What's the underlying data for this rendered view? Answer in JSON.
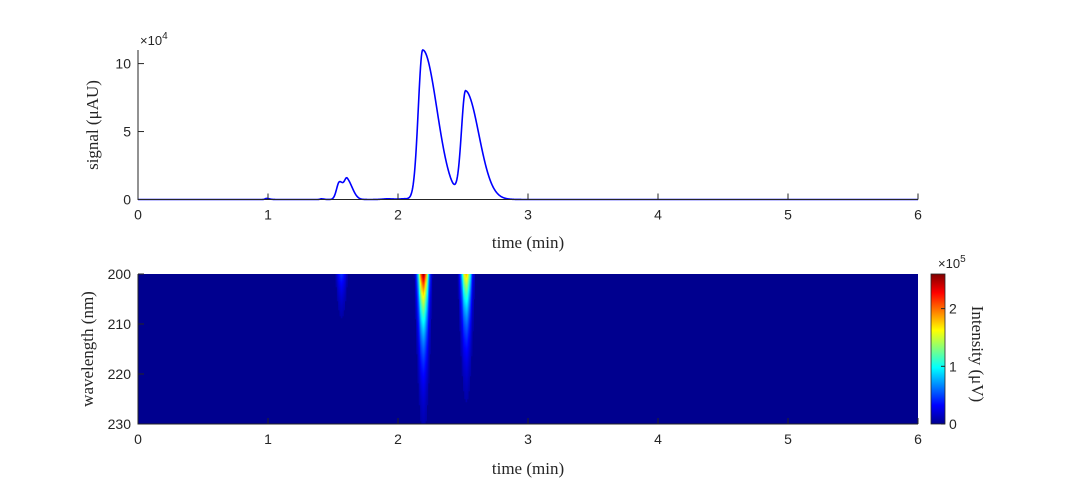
{
  "chart_data": [
    {
      "type": "line",
      "xlabel": "time (min)",
      "ylabel": "signal (μAU)",
      "y_exponent_base": "×10",
      "y_exponent_power": "4",
      "xlim": [
        0,
        6
      ],
      "ylim": [
        0,
        11
      ],
      "xticks": [
        "0",
        "1",
        "2",
        "3",
        "4",
        "5",
        "6"
      ],
      "yticks": [
        "0",
        "5",
        "10"
      ],
      "line_color": "#0000ff",
      "peaks": [
        {
          "time": 0.99,
          "height": 0.08,
          "width": 0.012,
          "tail": 0.01
        },
        {
          "time": 1.41,
          "height": 0.05,
          "width": 0.01,
          "tail": 0.01
        },
        {
          "time": 1.55,
          "height": 1.3,
          "width": 0.022,
          "tail": 0.01
        },
        {
          "time": 1.61,
          "height": 1.35,
          "width": 0.02,
          "tail": 0.02
        },
        {
          "time": 1.92,
          "height": 0.05,
          "width": 0.04,
          "tail": 0.02
        },
        {
          "time": 2.05,
          "height": 0.05,
          "width": 0.03,
          "tail": 0.02
        },
        {
          "time": 2.19,
          "height": 11.0,
          "width": 0.034,
          "tail": 0.075
        },
        {
          "time": 2.52,
          "height": 7.9,
          "width": 0.032,
          "tail": 0.07
        }
      ]
    },
    {
      "type": "heatmap",
      "xlabel": "time (min)",
      "ylabel": "wavelength (nm)",
      "xlim": [
        0,
        6
      ],
      "ylim": [
        200,
        230
      ],
      "xticks": [
        "0",
        "1",
        "2",
        "3",
        "4",
        "5",
        "6"
      ],
      "yticks": [
        "200",
        "210",
        "220",
        "230"
      ],
      "colorbar": {
        "label": "Intensity (μV)",
        "exponent_base": "×10",
        "exponent_power": "5",
        "ticks": [
          "0",
          "1",
          "2"
        ],
        "range": [
          0,
          2.6
        ],
        "colormap": "jet"
      },
      "bands": [
        {
          "time": 1.56,
          "peak_intensity": 0.45,
          "decay_nm": 6
        },
        {
          "time": 2.19,
          "peak_intensity": 2.55,
          "decay_nm": 10
        },
        {
          "time": 2.52,
          "peak_intensity": 1.8,
          "decay_nm": 9
        }
      ],
      "background_color": "#00008f"
    }
  ]
}
